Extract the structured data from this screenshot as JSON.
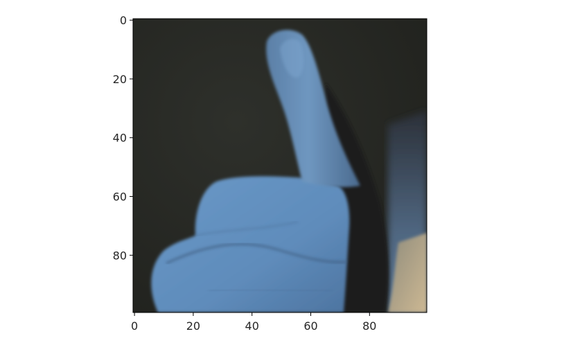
{
  "chart_data": {
    "type": "image",
    "title": "",
    "xlabel": "",
    "ylabel": "",
    "image_size": [
      100,
      100
    ],
    "xlim": [
      -0.5,
      99.5
    ],
    "ylim": [
      99.5,
      -0.5
    ],
    "xticks": [
      0,
      20,
      40,
      60,
      80
    ],
    "yticks": [
      0,
      20,
      40,
      60,
      80
    ],
    "xtick_labels": [
      "0",
      "20",
      "40",
      "60",
      "80"
    ],
    "ytick_labels": [
      "0",
      "20",
      "40",
      "60",
      "80"
    ],
    "grid": false,
    "legend": "none",
    "image_content": "thumbs-up hand photograph",
    "colors": {
      "background_dark": "#23241f",
      "hand_light": "#6e9ecd",
      "hand_mid": "#5a86b4",
      "hand_shadow": "#3c5a7c",
      "beige_corner": "#c2b18d",
      "frame": "#000000",
      "text": "#262626"
    }
  }
}
